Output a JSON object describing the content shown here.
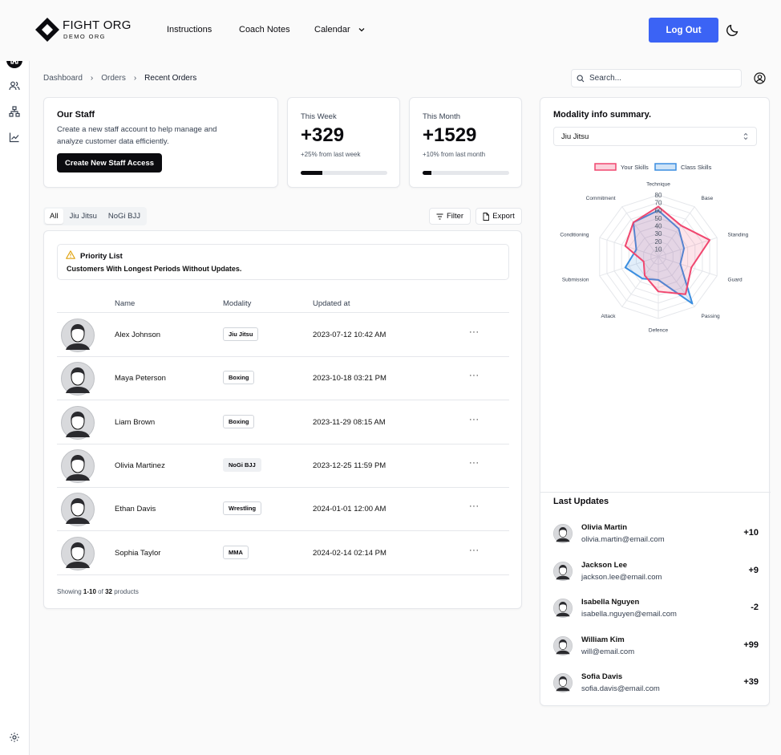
{
  "brand": {
    "title": "FIGHT ORG",
    "subtitle": "DEMO ORG"
  },
  "nav": {
    "instructions": "Instructions",
    "coach_notes": "Coach Notes",
    "calendar": "Calendar"
  },
  "header": {
    "logout": "Log Out"
  },
  "breadcrumb": [
    "Dashboard",
    "Orders",
    "Recent Orders"
  ],
  "search": {
    "placeholder": "Search..."
  },
  "staff": {
    "title": "Our Staff",
    "description": "Create a new staff account to help manage and analyze customer data efficiently.",
    "button": "Create New Staff Access"
  },
  "stats": [
    {
      "label": "This Week",
      "value": "+329",
      "change": "+25% from last week",
      "progress": 0.25
    },
    {
      "label": "This Month",
      "value": "+1529",
      "change": "+10% from last month",
      "progress": 0.1
    }
  ],
  "tabs": [
    "All",
    "Jiu Jitsu",
    "NoGi BJJ"
  ],
  "tools": {
    "filter": "Filter",
    "export": "Export"
  },
  "priority": {
    "title": "Priority List",
    "subtitle": "Customers With Longest Periods Without Updates."
  },
  "table": {
    "columns": [
      "Name",
      "Modality",
      "Updated at"
    ],
    "rows": [
      {
        "name": "Alex Johnson",
        "modality": "Jiu Jitsu",
        "updated": "2023-07-12 10:42 AM"
      },
      {
        "name": "Maya Peterson",
        "modality": "Boxing",
        "updated": "2023-10-18 03:21 PM"
      },
      {
        "name": "Liam Brown",
        "modality": "Boxing",
        "updated": "2023-11-29 08:15 AM"
      },
      {
        "name": "Olivia Martinez",
        "modality": "NoGi BJJ",
        "updated": "2023-12-25 11:59 PM"
      },
      {
        "name": "Ethan Davis",
        "modality": "Wrestling",
        "updated": "2024-01-01 12:00 AM"
      },
      {
        "name": "Sophia Taylor",
        "modality": "MMA",
        "updated": "2024-02-14 02:14 PM"
      }
    ],
    "showing": {
      "prefix": "Showing",
      "range": "1-10",
      "of": "of",
      "total": "32",
      "suffix": "products"
    }
  },
  "modality": {
    "title": "Modality info summary.",
    "selected": "Jiu Jitsu"
  },
  "chart_data": {
    "type": "radar",
    "categories": [
      "Technique",
      "Base",
      "Standing",
      "Guard",
      "Passing",
      "Defence",
      "Attack",
      "Submission",
      "Conditioning",
      "Commitment"
    ],
    "ticks": [
      "10",
      "20",
      "30",
      "40",
      "50",
      "60",
      "70",
      "80"
    ],
    "rmax": 80,
    "series": [
      {
        "name": "Your Skills",
        "color": "#f0476f",
        "values": [
          65,
          50,
          70,
          45,
          60,
          45,
          30,
          20,
          45,
          55
        ]
      },
      {
        "name": "Class Skills",
        "color": "#3b8ee0",
        "values": [
          60,
          45,
          35,
          30,
          75,
          30,
          35,
          45,
          30,
          55
        ]
      }
    ]
  },
  "last_updates": {
    "title": "Last Updates",
    "items": [
      {
        "name": "Olivia Martin",
        "email": "olivia.martin@email.com",
        "value": "+10"
      },
      {
        "name": "Jackson Lee",
        "email": "jackson.lee@email.com",
        "value": "+9"
      },
      {
        "name": "Isabella Nguyen",
        "email": "isabella.nguyen@email.com",
        "value": "-2"
      },
      {
        "name": "William Kim",
        "email": "will@email.com",
        "value": "+99"
      },
      {
        "name": "Sofia Davis",
        "email": "sofia.davis@email.com",
        "value": "+39"
      }
    ]
  }
}
